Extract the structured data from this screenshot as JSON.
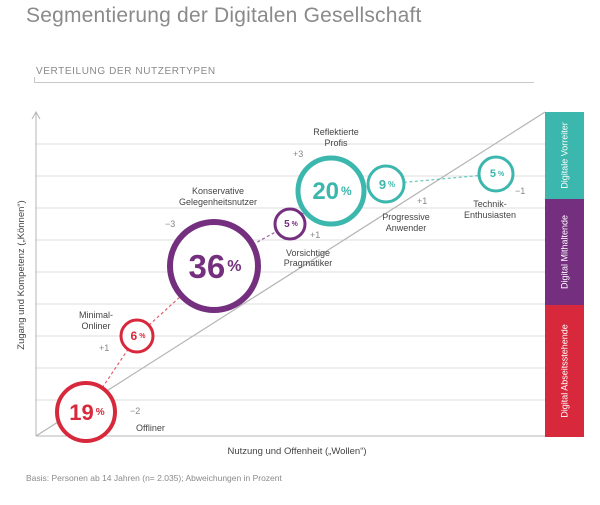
{
  "title": "Segmentierung der Digitalen Gesellschaft",
  "subtitle": "VERTEILUNG DER NUTZERTYPEN",
  "footnote": "Basis: Personen ab 14 Jahren (n= 2.035); Abweichungen in Prozent",
  "colors": {
    "red": "#d8283c",
    "purple": "#74307f",
    "teal": "#3cb7ad",
    "grid": "#dcdcdc",
    "axis": "#b4b4b4",
    "label": "#444444",
    "deviation": "#888888"
  },
  "chart_data": {
    "type": "scatter",
    "title": "",
    "xlabel": "Nutzung und Offenheit („Wollen“)",
    "ylabel": "Zugang und Kompetenz („Können“)",
    "grid": true,
    "groups": [
      {
        "name": "Digitale Vorreiter",
        "color": "#3cb7ad"
      },
      {
        "name": "Digital Mithaltende",
        "color": "#74307f"
      },
      {
        "name": "Digital Abseitsstehende",
        "color": "#d8283c"
      }
    ],
    "points": [
      {
        "label": "Offliner",
        "value": 19,
        "value_text": "19",
        "deviation": "−2",
        "group": "Digital Abseitsstehende"
      },
      {
        "label": "Minimal-Onliner",
        "value": 6,
        "value_text": "6",
        "deviation": "+1",
        "group": "Digital Abseitsstehende"
      },
      {
        "label": "Konservative Gelegenheitsnutzer",
        "value": 36,
        "value_text": "36",
        "deviation": "−3",
        "group": "Digital Mithaltende"
      },
      {
        "label": "Vorsichtige Pragmatiker",
        "value": 5,
        "value_text": "5",
        "deviation": "+1",
        "group": "Digital Mithaltende"
      },
      {
        "label": "Reflektierte Profis",
        "value": 20,
        "value_text": "20",
        "deviation": "+3",
        "group": "Digitale Vorreiter"
      },
      {
        "label": "Progressive Anwender",
        "value": 9,
        "value_text": "9",
        "deviation": "+1",
        "group": "Digitale Vorreiter"
      },
      {
        "label": "Technik-Enthusiasten",
        "value": 5,
        "value_text": "5",
        "deviation": "−1",
        "group": "Digitale Vorreiter"
      }
    ],
    "unit": "%"
  }
}
